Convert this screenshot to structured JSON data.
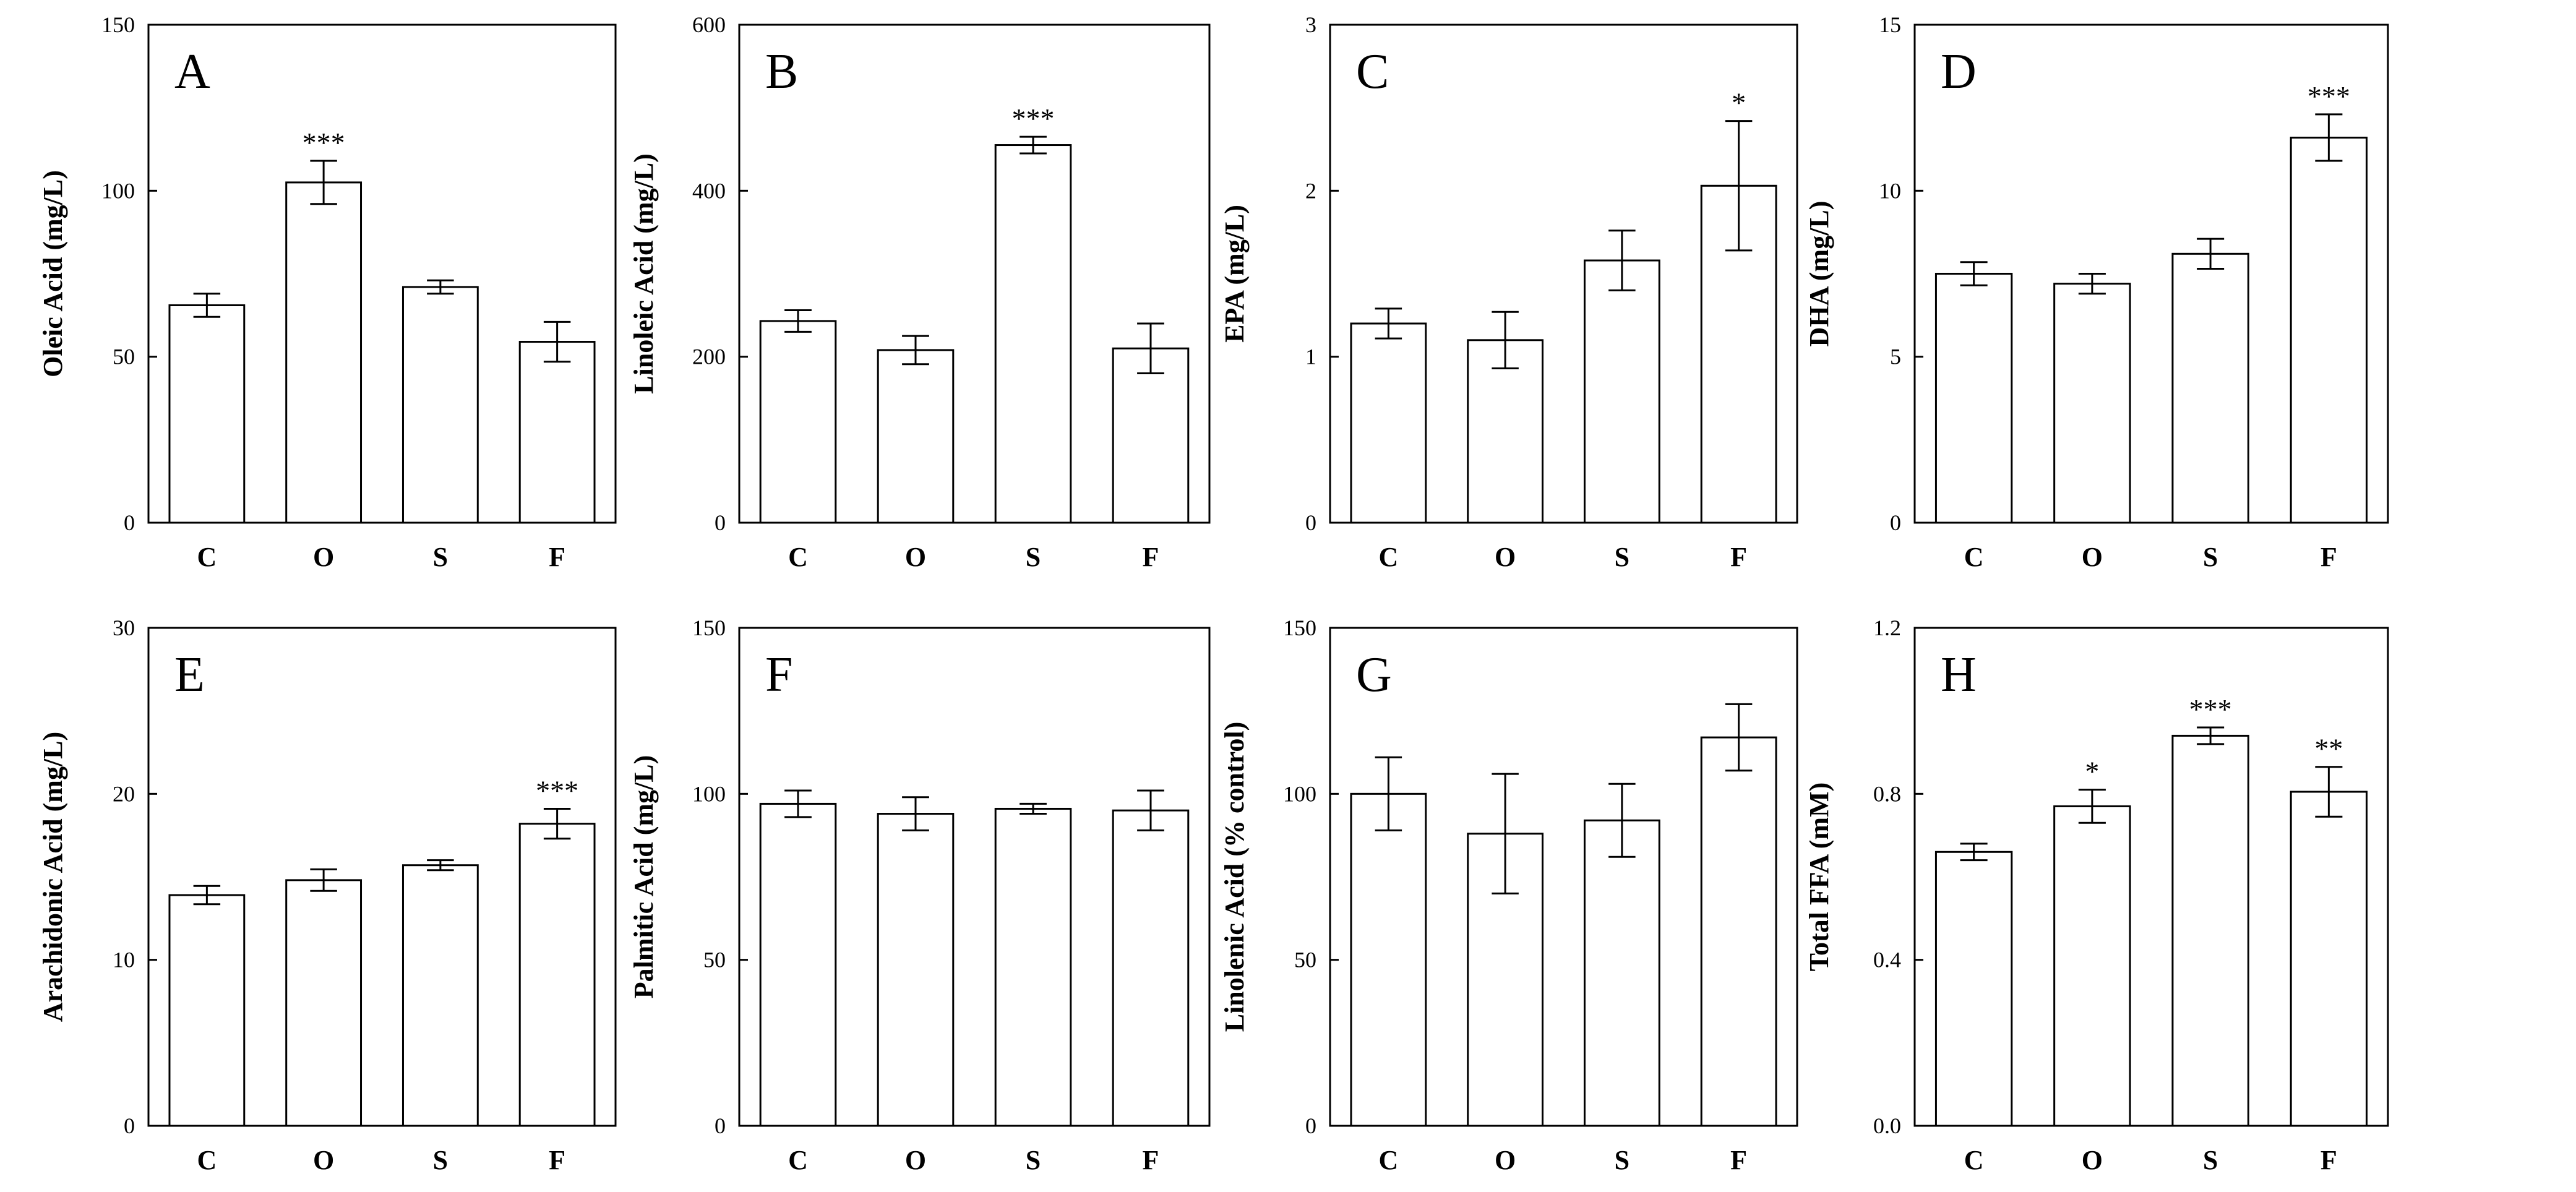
{
  "chart_data": [
    {
      "type": "bar",
      "panel": "A",
      "ylabel": "Oleic Acid (mg/L)",
      "categories": [
        "C",
        "O",
        "S",
        "F"
      ],
      "values": [
        65.5,
        102.5,
        71,
        54.5
      ],
      "errors": [
        3.5,
        6.5,
        2,
        6
      ],
      "significance": [
        "",
        "***",
        "",
        ""
      ],
      "ylim": [
        0,
        150
      ],
      "yticks": [
        0,
        50,
        100,
        150
      ],
      "ytick_labels": [
        "0",
        "50",
        "100",
        "150"
      ]
    },
    {
      "type": "bar",
      "panel": "B",
      "ylabel": "Linoleic Acid (mg/L)",
      "categories": [
        "C",
        "O",
        "S",
        "F"
      ],
      "values": [
        243,
        208,
        455,
        210
      ],
      "errors": [
        13,
        17,
        10,
        30
      ],
      "significance": [
        "",
        "",
        "***",
        ""
      ],
      "ylim": [
        0,
        600
      ],
      "yticks": [
        0,
        200,
        400,
        600
      ],
      "ytick_labels": [
        "0",
        "200",
        "400",
        "600"
      ]
    },
    {
      "type": "bar",
      "panel": "C",
      "ylabel": "EPA (mg/L)",
      "categories": [
        "C",
        "O",
        "S",
        "F"
      ],
      "values": [
        1.2,
        1.1,
        1.58,
        2.03
      ],
      "errors": [
        0.09,
        0.17,
        0.18,
        0.39
      ],
      "significance": [
        "",
        "",
        "",
        "*"
      ],
      "ylim": [
        0,
        3
      ],
      "yticks": [
        0,
        1,
        2,
        3
      ],
      "ytick_labels": [
        "0",
        "1",
        "2",
        "3"
      ]
    },
    {
      "type": "bar",
      "panel": "D",
      "ylabel": "DHA (mg/L)",
      "categories": [
        "C",
        "O",
        "S",
        "F"
      ],
      "values": [
        7.5,
        7.2,
        8.1,
        11.6
      ],
      "errors": [
        0.35,
        0.3,
        0.45,
        0.7
      ],
      "significance": [
        "",
        "",
        "",
        "***"
      ],
      "ylim": [
        0,
        15
      ],
      "yticks": [
        0,
        5,
        10,
        15
      ],
      "ytick_labels": [
        "0",
        "5",
        "10",
        "15"
      ]
    },
    {
      "type": "bar",
      "panel": "E",
      "ylabel": "Arachidonic Acid (mg/L)",
      "categories": [
        "C",
        "O",
        "S",
        "F"
      ],
      "values": [
        13.9,
        14.8,
        15.7,
        18.2
      ],
      "errors": [
        0.55,
        0.65,
        0.3,
        0.9
      ],
      "significance": [
        "",
        "",
        "",
        "***"
      ],
      "ylim": [
        0,
        30
      ],
      "yticks": [
        0,
        10,
        20,
        30
      ],
      "ytick_labels": [
        "0",
        "10",
        "20",
        "30"
      ]
    },
    {
      "type": "bar",
      "panel": "F",
      "ylabel": "Palmitic Acid (mg/L)",
      "categories": [
        "C",
        "O",
        "S",
        "F"
      ],
      "values": [
        97,
        94,
        95.5,
        95
      ],
      "errors": [
        4,
        5,
        1.5,
        6
      ],
      "significance": [
        "",
        "",
        "",
        ""
      ],
      "ylim": [
        0,
        150
      ],
      "yticks": [
        0,
        50,
        100,
        150
      ],
      "ytick_labels": [
        "0",
        "50",
        "100",
        "150"
      ]
    },
    {
      "type": "bar",
      "panel": "G",
      "ylabel": "Linolenic Acid (% control)",
      "categories": [
        "C",
        "O",
        "S",
        "F"
      ],
      "values": [
        100,
        88,
        92,
        117
      ],
      "errors": [
        11,
        18,
        11,
        10
      ],
      "significance": [
        "",
        "",
        "",
        ""
      ],
      "ylim": [
        0,
        150
      ],
      "yticks": [
        0,
        50,
        100,
        150
      ],
      "ytick_labels": [
        "0",
        "50",
        "100",
        "150"
      ]
    },
    {
      "type": "bar",
      "panel": "H",
      "ylabel": "Total FFA (mM)",
      "categories": [
        "C",
        "O",
        "S",
        "F"
      ],
      "values": [
        0.66,
        0.77,
        0.94,
        0.805
      ],
      "errors": [
        0.02,
        0.04,
        0.02,
        0.06
      ],
      "significance": [
        "",
        "*",
        "***",
        "**"
      ],
      "ylim": [
        0,
        1.2
      ],
      "yticks": [
        0,
        0.4,
        0.8,
        1.2
      ],
      "ytick_labels": [
        "0.0",
        "0.4",
        "0.8",
        "1.2"
      ]
    }
  ]
}
